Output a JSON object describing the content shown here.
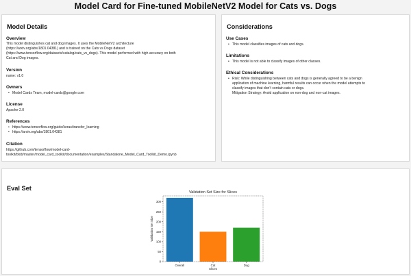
{
  "page_title": "Model Card for Fine-tuned MobileNetV2 Model for Cats vs. Dogs",
  "model_details": {
    "heading": "Model Details",
    "overview": {
      "title": "Overview",
      "line1": "This model distinguishes cat and dog images. It uses the MobileNetV2 architecture",
      "line2": "(https://arxiv.org/abs/1801.04381) and is trained on the Cats vs Dogs dataset",
      "line3": "(https://www.tensorflow.org/datasets/catalog/cats_vs_dogs). This model performed with high accuracy on both",
      "line4": "Cat and Dog images."
    },
    "version": {
      "title": "Version",
      "text": "name: v1.0"
    },
    "owners": {
      "title": "Owners",
      "items": [
        "Model Cards Team, model-cards@google.com"
      ]
    },
    "license": {
      "title": "License",
      "text": "Apache-2.0"
    },
    "references": {
      "title": "References",
      "items": [
        "https://www.tensorflow.org/guide/keras/transfer_learning",
        "https://arxiv.org/abs/1801.04381"
      ]
    },
    "citation": {
      "title": "Citation",
      "line1": "https://github.com/tensorflow/model-card-",
      "line2": "toolkit/blob/master/model_card_toolkit/documentation/examples/Standalone_Model_Card_Toolkit_Demo.ipynb"
    }
  },
  "considerations": {
    "heading": "Considerations",
    "use_cases": {
      "title": "Use Cases",
      "items": [
        "This model classifies images of cats and dogs."
      ]
    },
    "limitations": {
      "title": "Limitations",
      "items": [
        "This model is not able to classify images of other classes."
      ]
    },
    "ethical": {
      "title": "Ethical Considerations",
      "line1": "Risk: While distinguishing between cats and dogs is generally agreed to be a benign",
      "line2": "application of machine learning, harmful results can occur when the model attempts to",
      "line3": "classify images that don’t contain cats or dogs.",
      "line4": "Mitigation Strategy: Avoid application on non-dog and non-cat images."
    }
  },
  "eval_set": {
    "heading": "Eval Set"
  },
  "chart_data": {
    "type": "bar",
    "title": "Validation Set Size for Slices",
    "xlabel": "Slices",
    "ylabel": "Validation Set Size",
    "categories": [
      "Overall",
      "Cat",
      "Dog"
    ],
    "values": [
      320,
      150,
      170
    ],
    "colors": [
      "#1f77b4",
      "#ff7f0e",
      "#2ca02c"
    ],
    "ylim": [
      0,
      330
    ],
    "yticks": [
      0,
      50,
      100,
      150,
      200,
      250,
      300
    ],
    "grid": false
  }
}
